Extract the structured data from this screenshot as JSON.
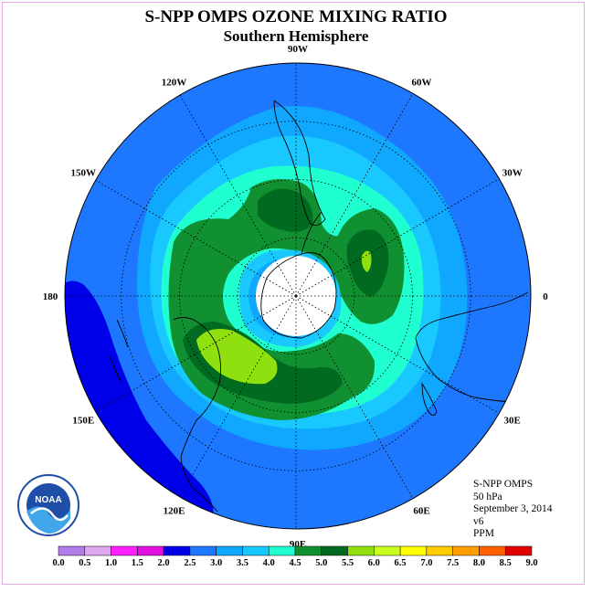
{
  "title": "S-NPP OMPS OZONE MIXING RATIO",
  "subtitle": "Southern Hemisphere",
  "info": {
    "satellite": "S-NPP OMPS",
    "level": "50 hPa",
    "date": "September 3, 2014",
    "version": "v6",
    "units": "PPM"
  },
  "logo": {
    "text": "NOAA",
    "icon": "noaa-logo-icon"
  },
  "longitude_labels": [
    {
      "text": "90W",
      "lon": -90
    },
    {
      "text": "60W",
      "lon": -60
    },
    {
      "text": "30W",
      "lon": -30
    },
    {
      "text": "0",
      "lon": 0
    },
    {
      "text": "30E",
      "lon": 30
    },
    {
      "text": "60E",
      "lon": 60
    },
    {
      "text": "90E",
      "lon": 90
    },
    {
      "text": "120E",
      "lon": 120
    },
    {
      "text": "150E",
      "lon": 150
    },
    {
      "text": "180",
      "lon": 180
    },
    {
      "text": "150W",
      "lon": -150
    },
    {
      "text": "120W",
      "lon": -120
    }
  ],
  "colorbar": {
    "ticks": [
      "0.0",
      "0.5",
      "1.0",
      "1.5",
      "2.0",
      "2.5",
      "3.0",
      "3.5",
      "4.0",
      "4.5",
      "5.0",
      "5.5",
      "6.0",
      "6.5",
      "7.0",
      "7.5",
      "8.0",
      "8.5",
      "9.0"
    ],
    "colors": [
      "#b07de8",
      "#e0a8f0",
      "#ff20ff",
      "#e010e0",
      "#0000e8",
      "#1e78ff",
      "#10a8ff",
      "#18c8ff",
      "#20ffd0",
      "#109030",
      "#006a20",
      "#90e010",
      "#c8ff20",
      "#ffff00",
      "#ffcc00",
      "#ffa000",
      "#ff6000",
      "#e00000",
      "#805030"
    ]
  },
  "colors": {
    "level_2_0": "#0000e8",
    "level_2_5": "#1e78ff",
    "level_3_0": "#10a8ff",
    "level_3_5": "#18c8ff",
    "level_4_0": "#20ffd0",
    "level_4_5": "#109030",
    "level_5_0": "#006a20",
    "level_5_5": "#90e010",
    "polar_night_no_data": "#ffffff"
  }
}
